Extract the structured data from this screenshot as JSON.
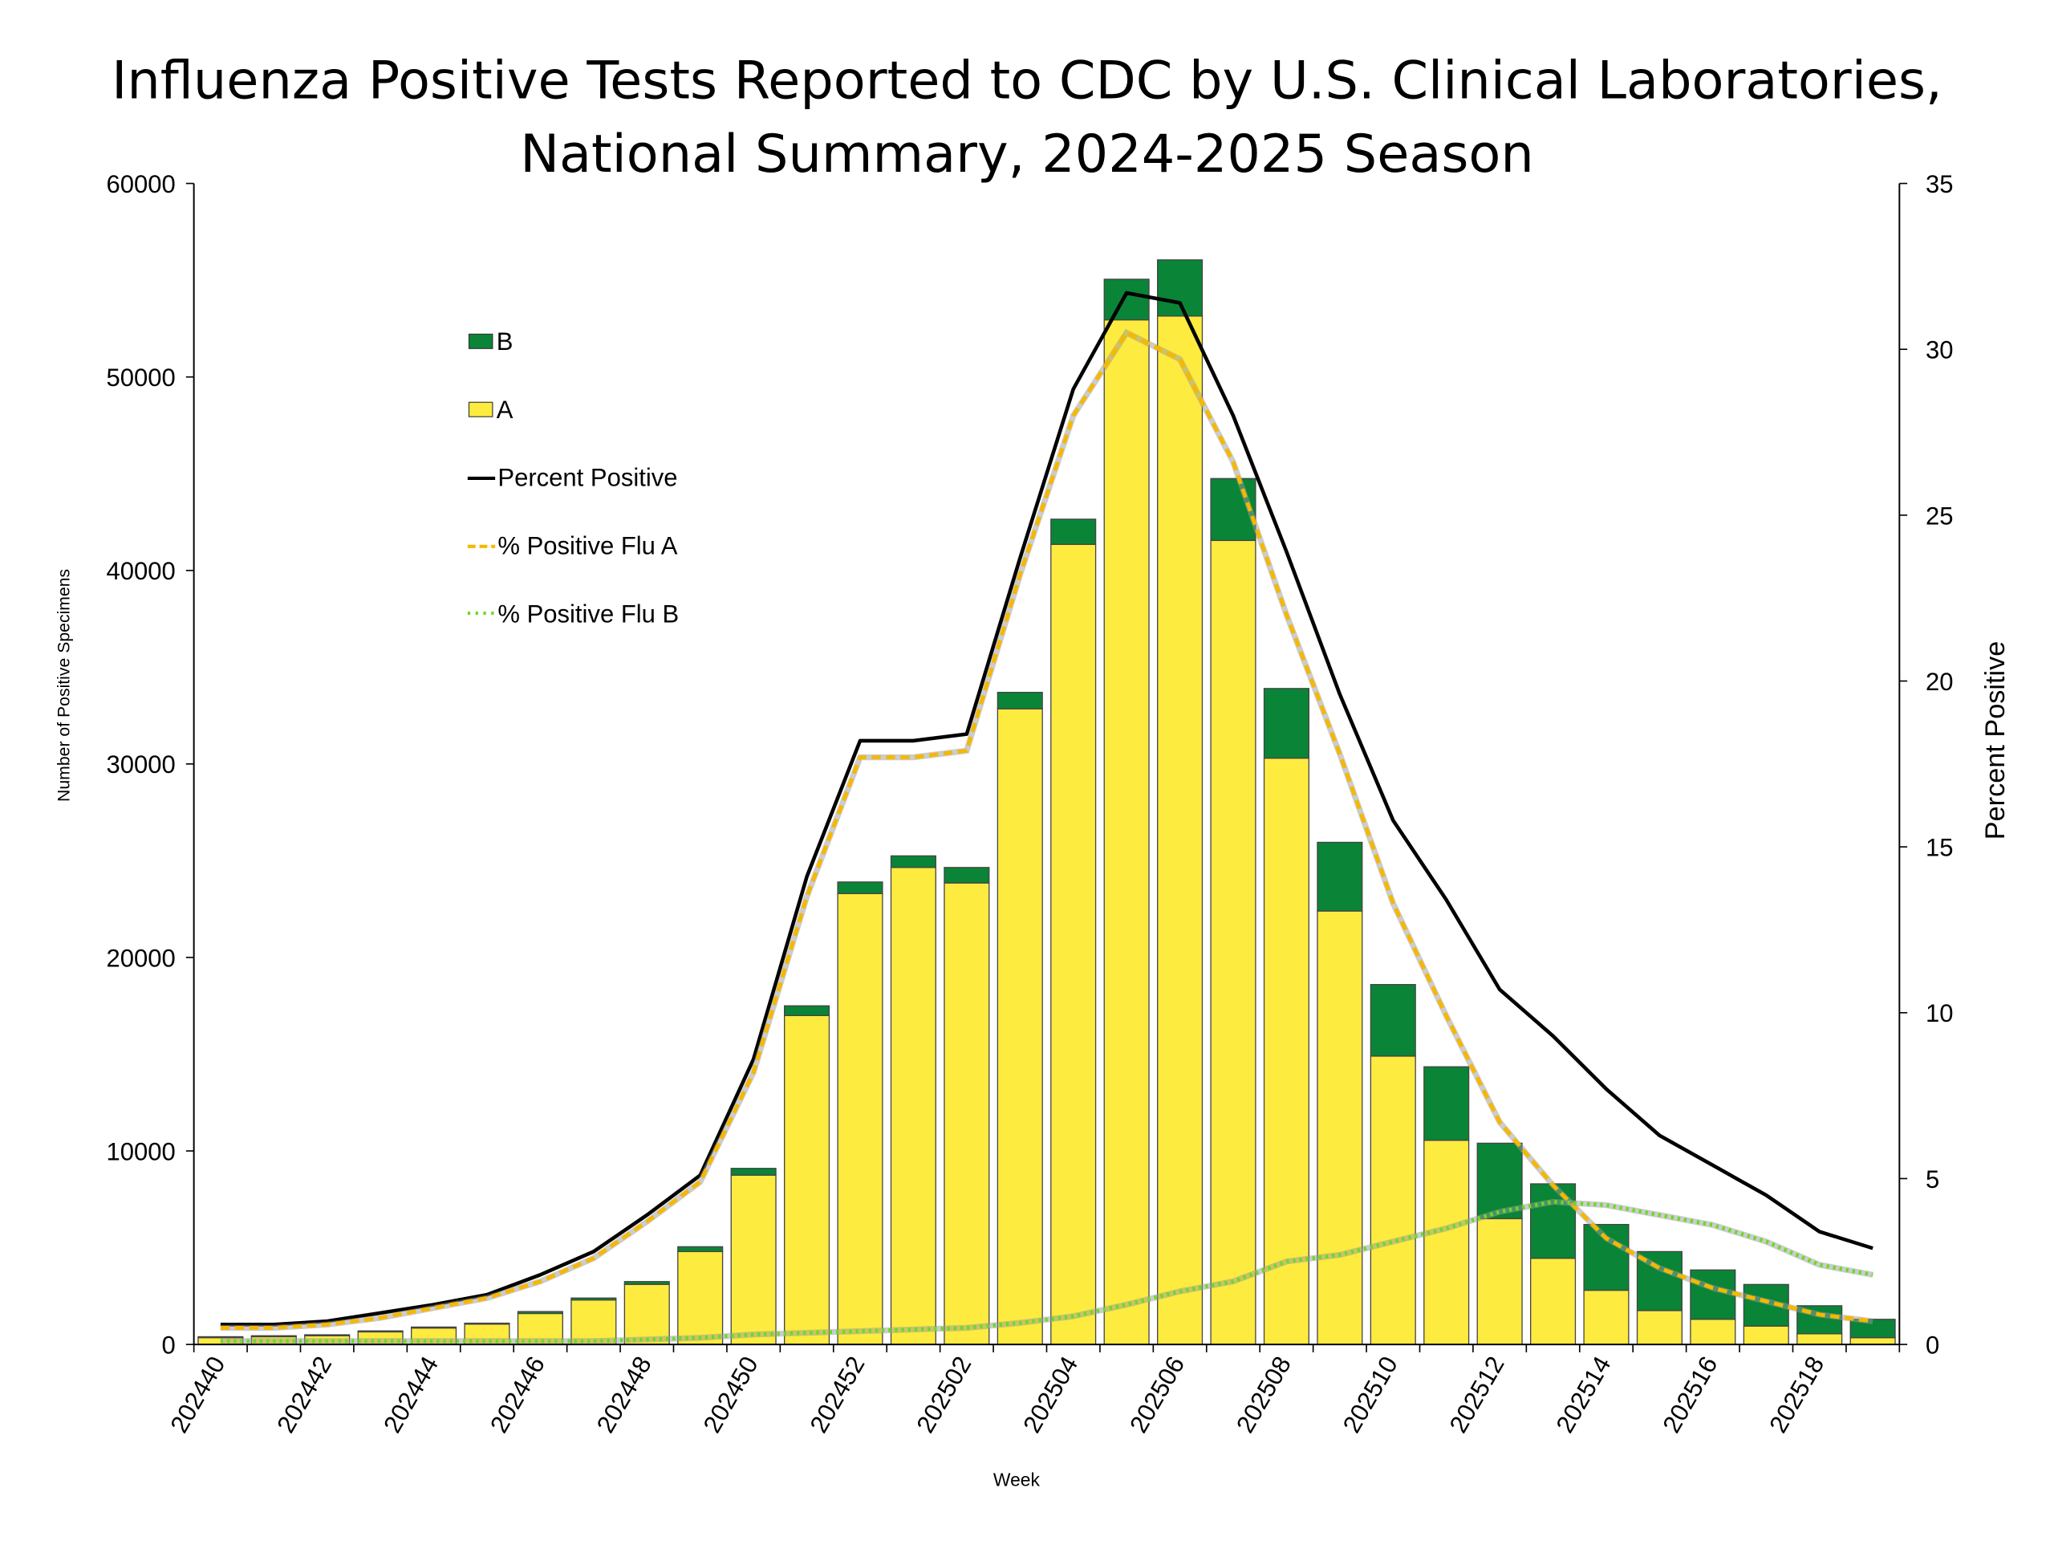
{
  "chart_data": {
    "type": "bar",
    "stacked": true,
    "title": [
      "Influenza Positive Tests Reported to CDC by U.S. Clinical Laboratories,",
      "National Summary, 2024-2025 Season"
    ],
    "xlabel": "Week",
    "ylabel": "Number of Positive Specimens",
    "y2label": "Percent Positive",
    "ylim": [
      0,
      60000
    ],
    "y2lim": [
      0,
      35
    ],
    "yticks": [
      0,
      10000,
      20000,
      30000,
      40000,
      50000,
      60000
    ],
    "y2ticks": [
      0,
      5,
      10,
      15,
      20,
      25,
      30,
      35
    ],
    "grid": false,
    "legend_position": "top-left",
    "categories": [
      "202440",
      "202441",
      "202442",
      "202443",
      "202444",
      "202445",
      "202446",
      "202447",
      "202448",
      "202449",
      "202450",
      "202451",
      "202452",
      "202501",
      "202502",
      "202503",
      "202504",
      "202505",
      "202506",
      "202507",
      "202508",
      "202509",
      "202510",
      "202511",
      "202512",
      "202513",
      "202514",
      "202515",
      "202516",
      "202517",
      "202518",
      "202519"
    ],
    "xtick_labels": [
      "202440",
      "202442",
      "202444",
      "202446",
      "202448",
      "202450",
      "202452",
      "202502",
      "202504",
      "202506",
      "202508",
      "202510",
      "202512",
      "202514",
      "202516",
      "202518"
    ],
    "series": [
      {
        "name": "A",
        "kind": "bar",
        "axis": "left",
        "color": "#FDEB3F",
        "values": [
          350,
          400,
          450,
          650,
          850,
          1050,
          1600,
          2300,
          3100,
          4800,
          8750,
          17000,
          23300,
          24650,
          23850,
          32850,
          41350,
          52950,
          53150,
          41550,
          30300,
          22400,
          14900,
          10550,
          6500,
          4450,
          2800,
          1750,
          1300,
          950,
          550,
          350
        ]
      },
      {
        "name": "B",
        "kind": "bar",
        "axis": "left",
        "color": "#0A8437",
        "values": [
          50,
          50,
          50,
          50,
          50,
          50,
          100,
          100,
          150,
          250,
          350,
          500,
          600,
          600,
          800,
          850,
          1300,
          2100,
          2900,
          3200,
          3600,
          3550,
          3700,
          3800,
          3900,
          3850,
          3400,
          3050,
          2550,
          2150,
          1450,
          950
        ]
      },
      {
        "name": "Percent Positive",
        "kind": "line",
        "axis": "right",
        "color": "#000000",
        "style": "solid",
        "values": [
          0.6,
          0.6,
          0.7,
          0.95,
          1.2,
          1.5,
          2.1,
          2.8,
          3.9,
          5.1,
          8.6,
          14.1,
          18.2,
          18.2,
          18.4,
          23.7,
          28.8,
          31.7,
          31.4,
          28.0,
          23.9,
          19.6,
          15.8,
          13.4,
          10.7,
          9.3,
          7.7,
          6.3,
          5.4,
          4.5,
          3.4,
          2.9
        ]
      },
      {
        "name": "% Positive Flu A",
        "kind": "line",
        "axis": "right",
        "color": "#F5B800",
        "style": "dashed",
        "values": [
          0.5,
          0.5,
          0.6,
          0.8,
          1.1,
          1.4,
          1.9,
          2.6,
          3.7,
          4.9,
          8.2,
          13.5,
          17.7,
          17.7,
          17.9,
          23.2,
          28.0,
          30.5,
          29.7,
          26.6,
          22.0,
          17.8,
          13.3,
          9.9,
          6.7,
          4.8,
          3.2,
          2.3,
          1.7,
          1.3,
          0.9,
          0.7
        ]
      },
      {
        "name": "% Positive Flu B",
        "kind": "line",
        "axis": "right",
        "color": "#66DD22",
        "style": "dotted",
        "values": [
          0.1,
          0.1,
          0.1,
          0.1,
          0.1,
          0.1,
          0.1,
          0.1,
          0.15,
          0.2,
          0.3,
          0.35,
          0.4,
          0.45,
          0.5,
          0.65,
          0.85,
          1.2,
          1.6,
          1.9,
          2.5,
          2.7,
          3.1,
          3.5,
          4.0,
          4.3,
          4.2,
          3.9,
          3.6,
          3.1,
          2.4,
          2.1
        ]
      }
    ]
  }
}
